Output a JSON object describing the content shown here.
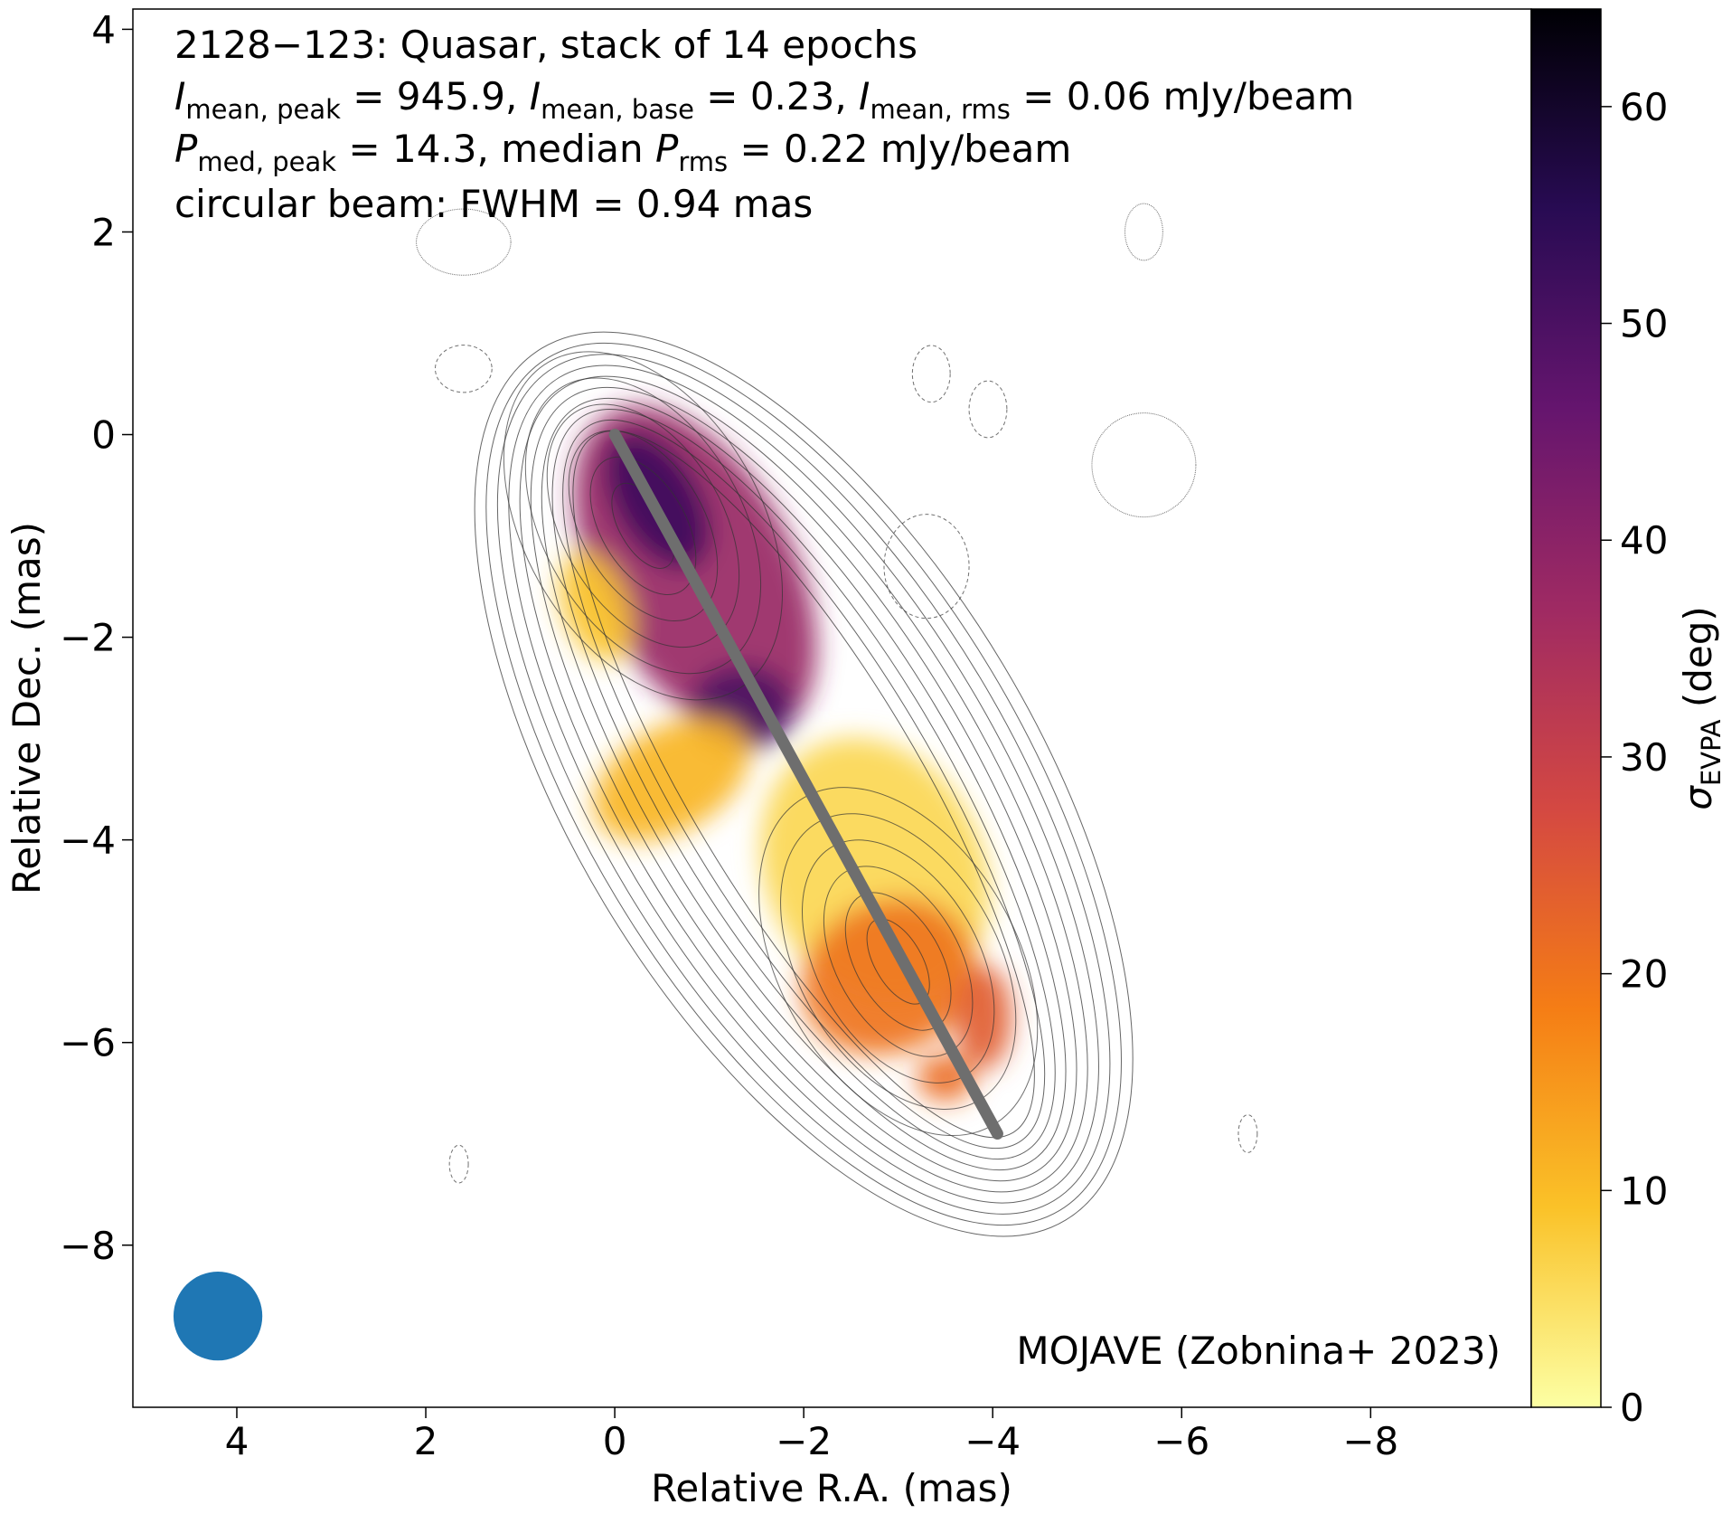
{
  "chart_data": {
    "type": "heatmap",
    "title_lines": [
      "2128−123: Quasar, stack of 14 epochs",
      "I_mean,peak = 945.9, I_mean,base = 0.23, I_mean,rms = 0.06 mJy/beam",
      "P_med,peak = 14.3, median P_rms = 0.22 mJy/beam",
      "circular beam: FWHM = 0.94 mas"
    ],
    "title": {
      "source": "2128−123",
      "source_class": "Quasar, stack of 14 epochs",
      "line2": {
        "sym1": "I",
        "sub1": "mean, peak",
        "val1": " = 945.9, ",
        "sym2": "I",
        "sub2": "mean, base",
        "val2": " = 0.23, ",
        "sym3": "I",
        "sub3": "mean, rms",
        "val3": " = 0.06 mJy/beam"
      },
      "line3": {
        "sym1": "P",
        "sub1": "med, peak",
        "val1": " = 14.3, median ",
        "sym2": "P",
        "sub2": "rms",
        "val2": " = 0.22 mJy/beam"
      },
      "line4": "circular beam: FWHM = 0.94 mas"
    },
    "credit": "MOJAVE (Zobnina+ 2023)",
    "xlabel": "Relative R.A. (mas)",
    "ylabel": "Relative Dec. (mas)",
    "xlim": [
      5.1,
      -9.7
    ],
    "ylim": [
      -9.6,
      4.2
    ],
    "x_ticks": [
      4,
      2,
      0,
      -2,
      -4,
      -6,
      -8
    ],
    "y_ticks": [
      4,
      2,
      0,
      -2,
      -4,
      -6,
      -8
    ],
    "colorbar": {
      "label_sym": "σ",
      "label_sub": "EVPA",
      "label_unit": " (deg)",
      "range": [
        0,
        64.5
      ],
      "ticks": [
        0,
        10,
        20,
        30,
        40,
        50,
        60
      ],
      "colormap": "inferno_r",
      "stops": [
        "#fcffa4",
        "#fac228",
        "#f57d15",
        "#d44842",
        "#9f2a63",
        "#65156e",
        "#280b53",
        "#000004"
      ]
    },
    "beam": {
      "fwhm_mas": 0.94,
      "x": 4.2,
      "y": -8.7,
      "color": "#1f77b4"
    },
    "ridge_line": {
      "color": "#6e6e6e",
      "x": [
        0.0,
        -4.05
      ],
      "y": [
        0.0,
        -6.9
      ]
    },
    "evpa_components": [
      {
        "x": -0.85,
        "y": -1.35,
        "rx": 1.05,
        "ry": 1.9,
        "angle_deg": 28,
        "sigma_deg": 38
      },
      {
        "x": -0.45,
        "y": -0.65,
        "rx": 0.45,
        "ry": 0.8,
        "angle_deg": 30,
        "sigma_deg": 52
      },
      {
        "x": -1.35,
        "y": -2.7,
        "rx": 0.55,
        "ry": 0.45,
        "angle_deg": 0,
        "sigma_deg": 50
      },
      {
        "x": 0.2,
        "y": -1.7,
        "rx": 0.35,
        "ry": 0.6,
        "angle_deg": 20,
        "sigma_deg": 9
      },
      {
        "x": -0.6,
        "y": -3.4,
        "rx": 0.9,
        "ry": 0.55,
        "angle_deg": 30,
        "sigma_deg": 11
      },
      {
        "x": -2.75,
        "y": -4.3,
        "rx": 1.15,
        "ry": 1.45,
        "angle_deg": 25,
        "sigma_deg": 6
      },
      {
        "x": -2.9,
        "y": -5.35,
        "rx": 0.95,
        "ry": 0.8,
        "angle_deg": 25,
        "sigma_deg": 20
      },
      {
        "x": -3.9,
        "y": -5.75,
        "rx": 0.3,
        "ry": 0.55,
        "angle_deg": 0,
        "sigma_deg": 24
      },
      {
        "x": -3.5,
        "y": -6.35,
        "rx": 0.3,
        "ry": 0.25,
        "angle_deg": 0,
        "sigma_deg": 21
      }
    ]
  }
}
